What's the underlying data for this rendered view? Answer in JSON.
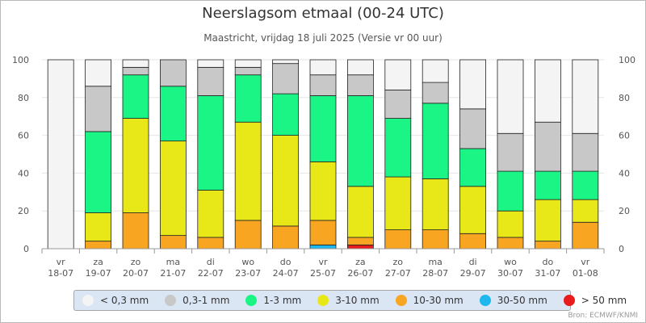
{
  "title": "Neerslagsom etmaal (00-24 UTC)",
  "subtitle": "Maastricht, vrijdag 18 juli 2025 (Versie vr 00 uur)",
  "source": "Bron: ECMWF/KNMI",
  "chart_data": {
    "type": "bar",
    "stacked": true,
    "percent": true,
    "ylim": [
      0,
      100
    ],
    "yticks": [
      0,
      20,
      40,
      60,
      80,
      100
    ],
    "grid": true,
    "legend_position": "bottom",
    "categories": [
      {
        "day": "vr",
        "date": "18-07"
      },
      {
        "day": "za",
        "date": "19-07"
      },
      {
        "day": "zo",
        "date": "20-07"
      },
      {
        "day": "ma",
        "date": "21-07"
      },
      {
        "day": "di",
        "date": "22-07"
      },
      {
        "day": "wo",
        "date": "23-07"
      },
      {
        "day": "do",
        "date": "24-07"
      },
      {
        "day": "vr",
        "date": "25-07"
      },
      {
        "day": "za",
        "date": "26-07"
      },
      {
        "day": "zo",
        "date": "27-07"
      },
      {
        "day": "ma",
        "date": "28-07"
      },
      {
        "day": "di",
        "date": "29-07"
      },
      {
        "day": "wo",
        "date": "30-07"
      },
      {
        "day": "do",
        "date": "31-07"
      },
      {
        "day": "vr",
        "date": "01-08"
      }
    ],
    "series": [
      {
        "name": "< 0,3 mm",
        "color": "#f4f4f4",
        "values": [
          100,
          14,
          4,
          0,
          4,
          4,
          2,
          8,
          8,
          16,
          12,
          26,
          39,
          33,
          39
        ]
      },
      {
        "name": "0,3-1 mm",
        "color": "#c8c8c8",
        "values": [
          0,
          24,
          4,
          14,
          15,
          4,
          16,
          11,
          11,
          15,
          11,
          21,
          20,
          26,
          20
        ]
      },
      {
        "name": "1-3 mm",
        "color": "#1af585",
        "values": [
          0,
          43,
          23,
          29,
          50,
          25,
          22,
          35,
          48,
          31,
          40,
          20,
          21,
          15,
          15
        ]
      },
      {
        "name": "3-10 mm",
        "color": "#e8e819",
        "values": [
          0,
          15,
          50,
          50,
          25,
          52,
          48,
          31,
          27,
          28,
          27,
          25,
          14,
          22,
          12
        ]
      },
      {
        "name": "10-30 mm",
        "color": "#f8a522",
        "values": [
          0,
          4,
          19,
          7,
          6,
          15,
          12,
          13,
          4,
          10,
          10,
          8,
          6,
          4,
          14
        ]
      },
      {
        "name": "30-50 mm",
        "color": "#1eb8ef",
        "values": [
          0,
          0,
          0,
          0,
          0,
          0,
          0,
          2,
          0,
          0,
          0,
          0,
          0,
          0,
          0
        ]
      },
      {
        "name": "> 50 mm",
        "color": "#e81c1c",
        "values": [
          0,
          0,
          0,
          0,
          0,
          0,
          0,
          0,
          2,
          0,
          0,
          0,
          0,
          0,
          0
        ]
      }
    ]
  }
}
